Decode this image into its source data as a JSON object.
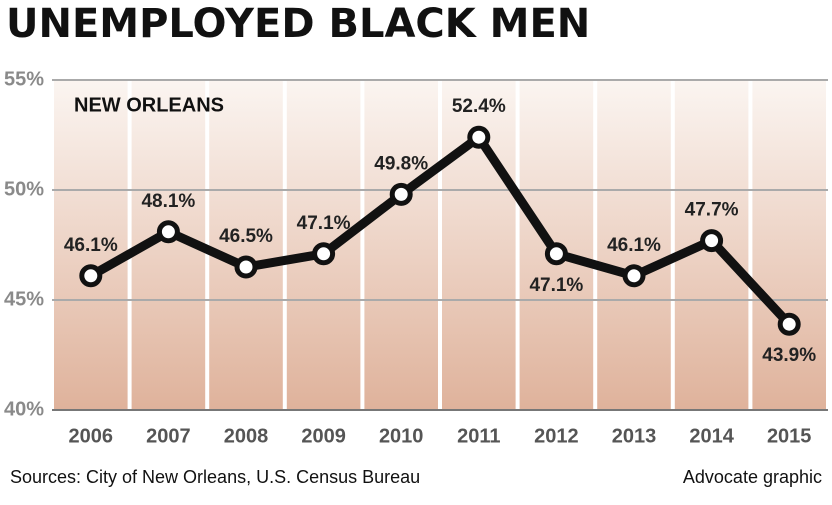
{
  "chart_data": {
    "type": "line",
    "title": "UNEMPLOYED BLACK MEN",
    "annotation": "NEW ORLEANS",
    "categories": [
      "2006",
      "2007",
      "2008",
      "2009",
      "2010",
      "2011",
      "2012",
      "2013",
      "2014",
      "2015"
    ],
    "values": [
      46.1,
      48.1,
      46.5,
      47.1,
      49.8,
      52.4,
      47.1,
      46.1,
      47.7,
      43.9
    ],
    "value_labels": [
      "46.1%",
      "48.1%",
      "46.5%",
      "47.1%",
      "49.8%",
      "52.4%",
      "47.1%",
      "46.1%",
      "47.7%",
      "43.9%"
    ],
    "color": "#111111",
    "ylim": [
      40,
      55
    ],
    "yticks": [
      {
        "value": 40,
        "label": "40%"
      },
      {
        "value": 45,
        "label": "45%"
      },
      {
        "value": 50,
        "label": "50%"
      },
      {
        "value": 55,
        "label": "55%"
      }
    ],
    "grid": true,
    "source": "Sources: City of New Orleans, U.S. Census Bureau",
    "credit": "Advocate graphic"
  }
}
